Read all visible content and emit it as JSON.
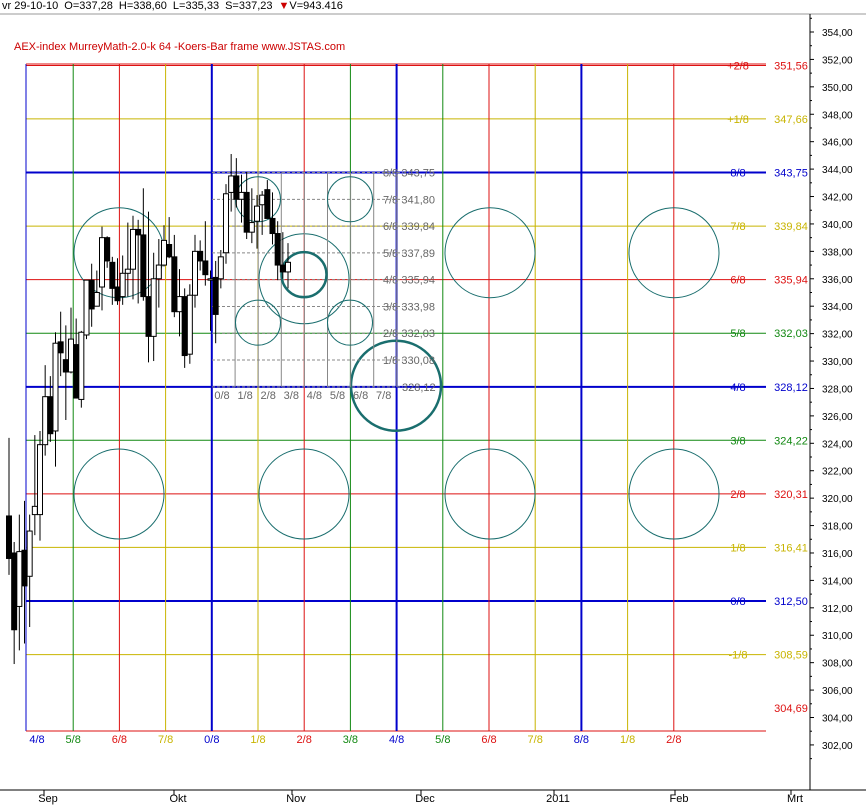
{
  "header": {
    "date": "vr 29-10-10",
    "open": "O=337,28",
    "high": "H=338,60",
    "low": "L=335,33",
    "close": "S=337,23",
    "volume": "V=943.416"
  },
  "chart_data": {
    "type": "candlestick",
    "title": "AEX-index MurreyMath-2.0-k  64 -Koers-Bar frame www.JSTAS.com",
    "ylim": [
      301,
      355
    ],
    "y_ticks": [
      "302,00",
      "304,00",
      "306,00",
      "308,00",
      "310,00",
      "312,00",
      "314,00",
      "316,00",
      "318,00",
      "320,00",
      "322,00",
      "324,00",
      "326,00",
      "328,00",
      "330,00",
      "332,00",
      "334,00",
      "336,00",
      "338,00",
      "340,00",
      "342,00",
      "344,00",
      "346,00",
      "348,00",
      "350,00",
      "352,00",
      "354,00"
    ],
    "x_ticks": [
      "Sep",
      "Okt",
      "Nov",
      "Dec",
      "2011",
      "Feb",
      "Mrt"
    ],
    "colors": {
      "red": "#dd1111",
      "blue": "#0000cc",
      "green": "#118811",
      "yellow": "#c8b400",
      "circle": "#1a6e6e",
      "box": "#888888"
    },
    "murrey_levels": [
      {
        "frac": "+2/8",
        "value": 351.56,
        "label": "351,56",
        "color": "red"
      },
      {
        "frac": "+1/8",
        "value": 347.66,
        "label": "347,66",
        "color": "yellow"
      },
      {
        "frac": "8/8",
        "value": 343.75,
        "label": "343,75",
        "color": "blue"
      },
      {
        "frac": "7/8",
        "value": 339.84,
        "label": "339,84",
        "color": "yellow"
      },
      {
        "frac": "6/8",
        "value": 335.94,
        "label": "335,94",
        "color": "red"
      },
      {
        "frac": "5/8",
        "value": 332.03,
        "label": "332,03",
        "color": "green"
      },
      {
        "frac": "4/8",
        "value": 328.12,
        "label": "328,12",
        "color": "blue"
      },
      {
        "frac": "3/8",
        "value": 324.22,
        "label": "324,22",
        "color": "green"
      },
      {
        "frac": "2/8",
        "value": 320.31,
        "label": "320,31",
        "color": "red"
      },
      {
        "frac": "1/8",
        "value": 316.41,
        "label": "316,41",
        "color": "yellow"
      },
      {
        "frac": "0/8",
        "value": 312.5,
        "label": "312,50",
        "color": "blue"
      },
      {
        "frac": "-1/8",
        "value": 308.59,
        "label": "308,59",
        "color": "yellow"
      },
      {
        "value": 304.69,
        "label": "304,69",
        "color": "red"
      }
    ],
    "time_grid": [
      {
        "label": "4/8",
        "color": "blue"
      },
      {
        "label": "5/8",
        "color": "green"
      },
      {
        "label": "6/8",
        "color": "red"
      },
      {
        "label": "7/8",
        "color": "yellow"
      },
      {
        "label": "0/8",
        "color": "blue"
      },
      {
        "label": "1/8",
        "color": "yellow"
      },
      {
        "label": "2/8",
        "color": "red"
      },
      {
        "label": "3/8",
        "color": "green"
      },
      {
        "label": "4/8",
        "color": "blue"
      },
      {
        "label": "5/8",
        "color": "green"
      },
      {
        "label": "6/8",
        "color": "red"
      },
      {
        "label": "7/8",
        "color": "yellow"
      },
      {
        "label": "8/8",
        "color": "blue"
      },
      {
        "label": "1/8",
        "color": "yellow"
      },
      {
        "label": "2/8",
        "color": "red"
      }
    ],
    "sub_frame": {
      "levels": [
        {
          "label": "8/8 343,75"
        },
        {
          "label": "7/8 341,80"
        },
        {
          "label": "6/8 339,84"
        },
        {
          "label": "5/8 337,89"
        },
        {
          "label": "4/8 335,94"
        },
        {
          "label": "3/8 333,98"
        },
        {
          "label": "2/8 332,03"
        },
        {
          "label": "1/8 330,08"
        },
        {
          "label": "328,12"
        }
      ],
      "time_labels": [
        "0/8",
        "1/8",
        "2/8",
        "3/8",
        "4/8",
        "5/8",
        "6/8",
        "7/8"
      ]
    },
    "candles": [
      [
        318.7,
        324.4,
        314.4,
        315.6
      ],
      [
        316.0,
        316.8,
        307.9,
        310.4
      ],
      [
        312.1,
        318.8,
        308.9,
        316.1
      ],
      [
        316.2,
        319.8,
        309.4,
        313.6
      ],
      [
        314.3,
        318.8,
        310.6,
        317.6
      ],
      [
        318.8,
        324.6,
        317.3,
        319.4
      ],
      [
        318.8,
        324.9,
        316.9,
        323.9
      ],
      [
        323.9,
        329.7,
        323.1,
        327.4
      ],
      [
        327.4,
        328.9,
        324.1,
        324.7
      ],
      [
        324.9,
        332.1,
        322.3,
        331.3
      ],
      [
        331.4,
        333.6,
        328.9,
        330.6
      ],
      [
        330.1,
        332.6,
        325.7,
        329.2
      ],
      [
        329.2,
        333.9,
        329.1,
        331.6
      ],
      [
        331.2,
        333.1,
        327.5,
        327.3
      ],
      [
        327.2,
        332.2,
        326.6,
        332.1
      ],
      [
        331.9,
        335.9,
        331.6,
        335.9
      ],
      [
        335.9,
        337.1,
        332.5,
        333.8
      ],
      [
        334.0,
        336.6,
        334.0,
        335.0
      ],
      [
        335.4,
        339.8,
        333.7,
        339.0
      ],
      [
        339.0,
        339.1,
        336.8,
        337.3
      ],
      [
        337.2,
        337.6,
        334.1,
        335.3
      ],
      [
        335.4,
        337.5,
        334.1,
        334.4
      ],
      [
        334.7,
        337.7,
        334.1,
        336.4
      ],
      [
        336.4,
        340.1,
        334.7,
        336.7
      ],
      [
        336.7,
        340.6,
        334.5,
        339.6
      ],
      [
        339.6,
        340.3,
        334.2,
        339.2
      ],
      [
        339.2,
        342.6,
        334.4,
        334.7
      ],
      [
        334.7,
        340.9,
        329.9,
        331.8
      ],
      [
        331.8,
        337.9,
        330.0,
        336.0
      ],
      [
        336.0,
        338.9,
        333.9,
        337.0
      ],
      [
        337.0,
        339.9,
        336.9,
        338.8
      ],
      [
        338.5,
        340.5,
        337.5,
        337.6
      ],
      [
        337.6,
        339.2,
        333.2,
        333.6
      ],
      [
        333.6,
        336.7,
        331.8,
        334.7
      ],
      [
        334.7,
        335.3,
        329.5,
        330.4
      ],
      [
        330.5,
        335.6,
        329.8,
        334.8
      ],
      [
        334.8,
        339.2,
        333.9,
        338.0
      ],
      [
        338.0,
        338.8,
        336.6,
        337.3
      ],
      [
        337.3,
        340.2,
        335.5,
        336.3
      ],
      [
        335.9,
        336.6,
        332.2,
        336.0
      ],
      [
        336.1,
        337.3,
        331.3,
        333.4
      ],
      [
        336.0,
        338.1,
        335.3,
        337.6
      ],
      [
        337.9,
        342.9,
        337.1,
        342.2
      ],
      [
        342.3,
        345.1,
        340.9,
        343.5
      ],
      [
        343.5,
        344.8,
        341.2,
        341.8
      ],
      [
        341.8,
        343.6,
        340.1,
        342.3
      ],
      [
        342.3,
        343.8,
        338.9,
        339.4
      ],
      [
        339.4,
        342.6,
        338.6,
        340.1
      ],
      [
        340.2,
        342.1,
        338.2,
        341.3
      ],
      [
        341.4,
        342.4,
        339.2,
        342.1
      ],
      [
        342.5,
        343.2,
        340.4,
        340.4
      ],
      [
        340.4,
        342.3,
        338.5,
        339.3
      ],
      [
        339.3,
        340.2,
        335.9,
        337.0
      ],
      [
        337.0,
        339.4,
        336.0,
        336.5
      ],
      [
        336.5,
        338.6,
        335.3,
        337.2
      ]
    ]
  }
}
